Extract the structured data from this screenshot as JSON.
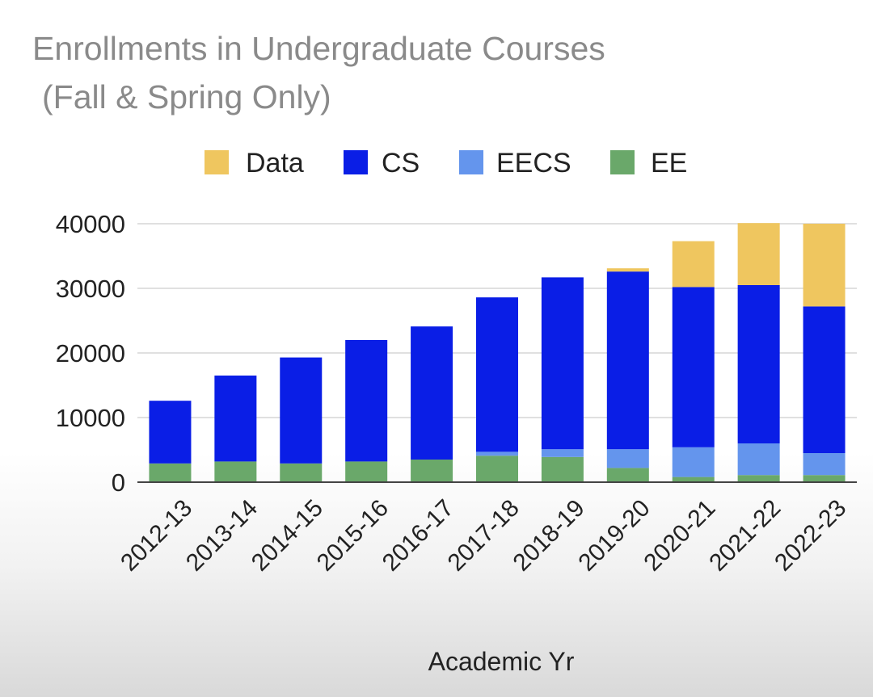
{
  "chart_data": {
    "type": "bar",
    "stacked": true,
    "title": "Enrollments in Undergraduate Courses",
    "subtitle": "(Fall & Spring Only)",
    "xlabel": "Academic Yr",
    "ylabel": "",
    "ylim": [
      0,
      40000
    ],
    "yticks": [
      "40000",
      "30000",
      "20000",
      "10000",
      "0"
    ],
    "grid": true,
    "legend_position": "top",
    "legend": [
      "Data",
      "CS",
      "EECS",
      "EE"
    ],
    "categories": [
      "2012-13",
      "2013-14",
      "2014-15",
      "2015-16",
      "2016-17",
      "2017-18",
      "2018-19",
      "2019-20",
      "2020-21",
      "2021-22",
      "2022-23"
    ],
    "series": [
      {
        "name": "EE",
        "color": "#6aa86a",
        "values": [
          2900,
          3200,
          2900,
          3200,
          3500,
          4100,
          3900,
          2200,
          800,
          1100,
          1100
        ]
      },
      {
        "name": "EECS",
        "color": "#6495ed",
        "values": [
          0,
          0,
          0,
          0,
          0,
          600,
          1200,
          2900,
          4600,
          4900,
          3400
        ]
      },
      {
        "name": "CS",
        "color": "#0a1ee6",
        "values": [
          9700,
          13300,
          16400,
          18800,
          20600,
          23900,
          26600,
          27500,
          24800,
          24500,
          22700
        ]
      },
      {
        "name": "Data",
        "color": "#efc65f",
        "values": [
          0,
          0,
          0,
          0,
          0,
          0,
          0,
          500,
          7100,
          9600,
          12800
        ]
      }
    ]
  }
}
